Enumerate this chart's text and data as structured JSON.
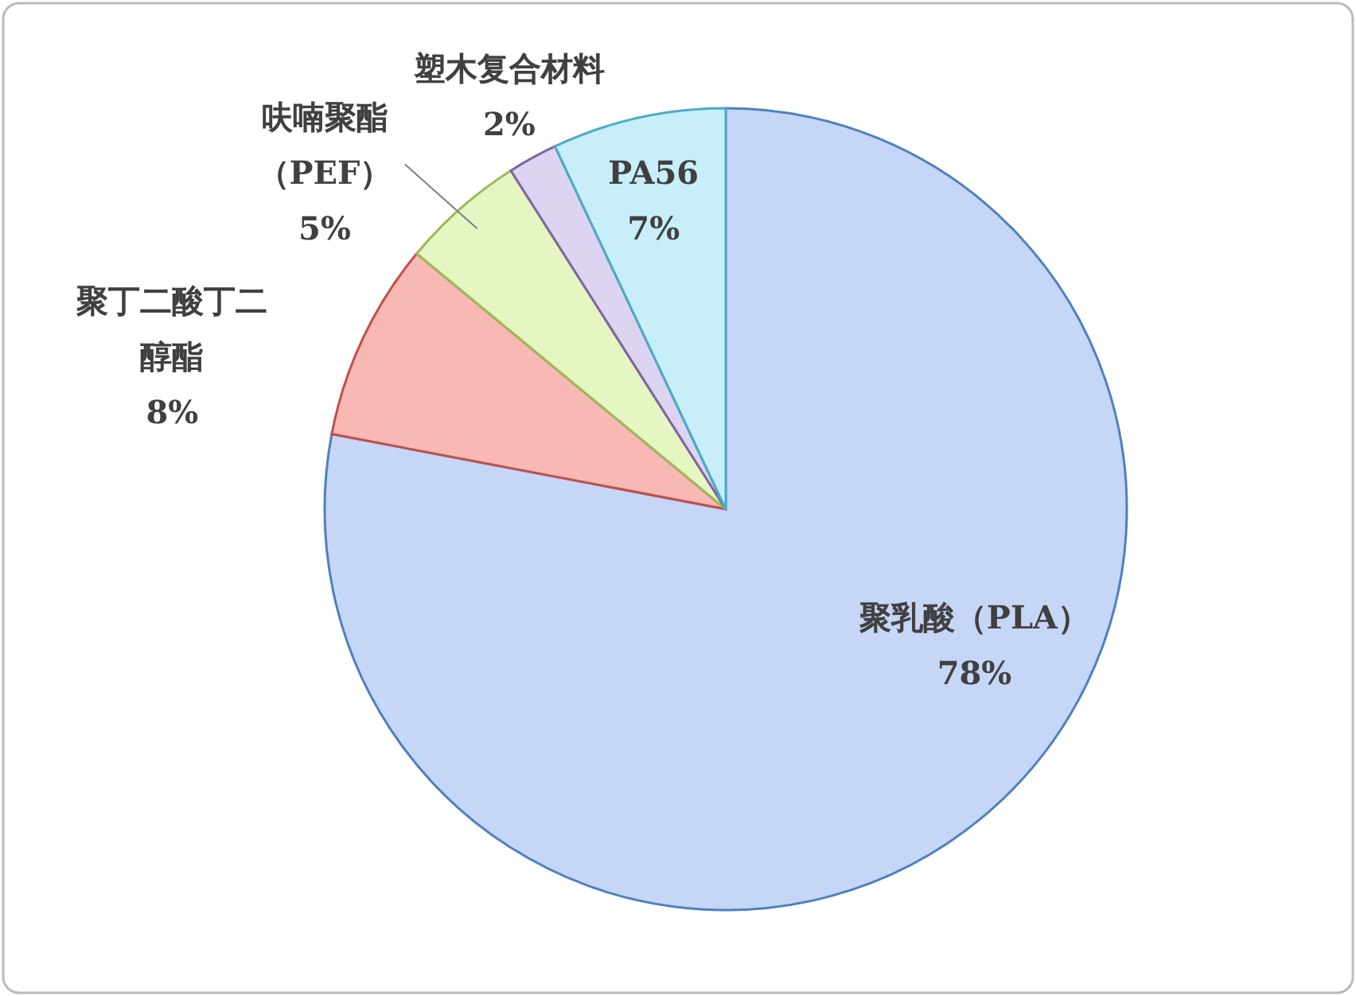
{
  "chart_data": {
    "type": "pie",
    "categories": [
      "聚乳酸（PLA）",
      "聚丁二酸丁二醇酯",
      "呋喃聚酯（PEF）",
      "塑木复合材料",
      "PA56"
    ],
    "values": [
      78,
      8,
      5,
      2,
      7
    ],
    "colors": [
      "#c6d6f6",
      "#f8b8b4",
      "#e6f6c2",
      "#dcd4f0",
      "#c8eefa"
    ],
    "value_labels": [
      "78%",
      "8%",
      "5%",
      "2%",
      "7%"
    ],
    "legend": false
  }
}
